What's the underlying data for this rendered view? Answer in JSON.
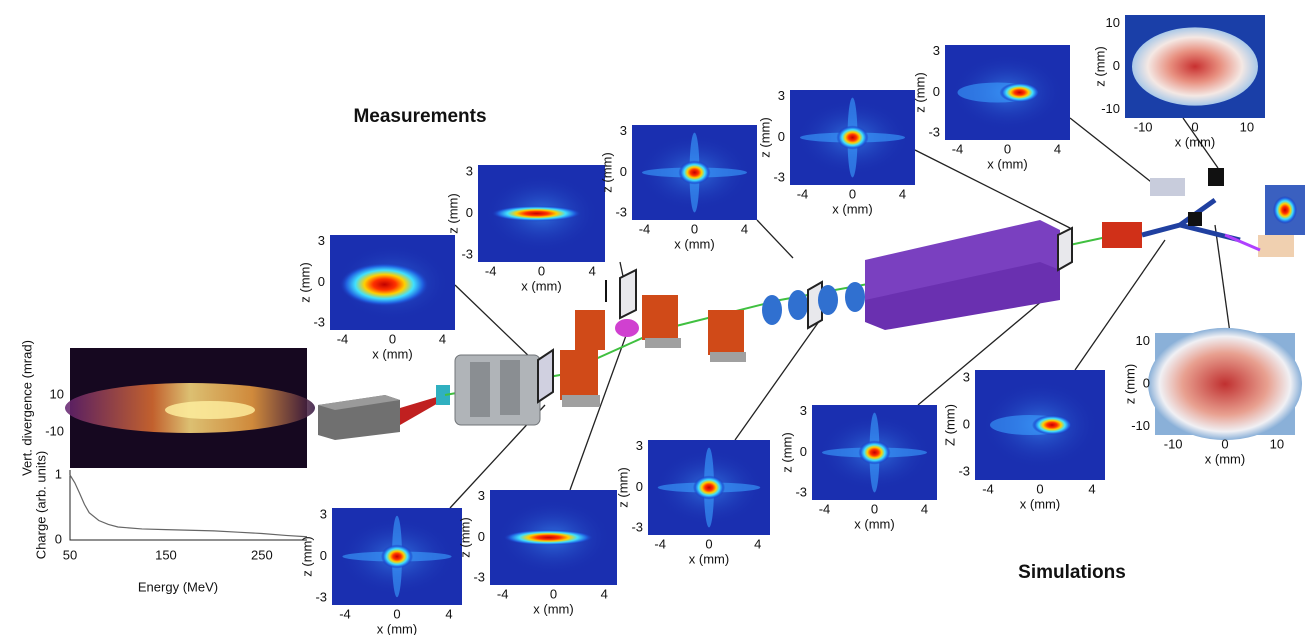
{
  "labels": {
    "measurements": "Measurements",
    "simulations": "Simulations"
  },
  "spectrum": {
    "divergence_label": "Vert. divergence (mrad)",
    "divergence_ticks": [
      10,
      -10
    ],
    "charge_label": "Charge (arb. units)",
    "charge_ticks": [
      1,
      0
    ],
    "energy_ticks": [
      50,
      150,
      250
    ],
    "energy_label": "Energy (MeV)",
    "charge_curve": {
      "energy": [
        50,
        55,
        60,
        65,
        70,
        80,
        90,
        100,
        125,
        150,
        175,
        200,
        225,
        250,
        275,
        297
      ],
      "charge": [
        1,
        0.88,
        0.72,
        0.55,
        0.42,
        0.3,
        0.24,
        0.2,
        0.17,
        0.16,
        0.15,
        0.14,
        0.12,
        0.1,
        0.07,
        0.05
      ]
    }
  },
  "panels": [
    {
      "x_label": "x (mm)",
      "y_label": "z (mm)",
      "xticks": [
        -4,
        0,
        4
      ],
      "yticks": [
        3,
        0,
        -3
      ]
    },
    {
      "x_label": "x (mm)",
      "y_label": "z (mm)",
      "xticks": [
        -4,
        0,
        4
      ],
      "yticks": [
        3,
        0,
        -3
      ]
    },
    {
      "x_label": "x (mm)",
      "y_label": "z (mm)",
      "xticks": [
        -4,
        0,
        4
      ],
      "yticks": [
        3,
        0,
        -3
      ]
    },
    {
      "x_label": "x (mm)",
      "y_label": "z (mm)",
      "xticks": [
        -4,
        0,
        4
      ],
      "yticks": [
        3,
        0,
        -3
      ]
    },
    {
      "x_label": "x (mm)",
      "y_label": "z (mm)",
      "xticks": [
        -4,
        0,
        4
      ],
      "yticks": [
        3,
        0,
        -3
      ]
    },
    {
      "x_label": "x (mm)",
      "y_label": "z (mm)",
      "xticks": [
        -10,
        0,
        10
      ],
      "yticks": [
        10,
        0,
        -10
      ]
    },
    {
      "x_label": "x (mm)",
      "y_label": "z (mm)",
      "xticks": [
        -4,
        0,
        4
      ],
      "yticks": [
        3,
        0,
        -3
      ]
    },
    {
      "x_label": "x (mm)",
      "y_label": "z (mm)",
      "xticks": [
        -4,
        0,
        4
      ],
      "yticks": [
        3,
        0,
        -3
      ]
    },
    {
      "x_label": "x (mm)",
      "y_label": "z (mm)",
      "xticks": [
        -4,
        0,
        4
      ],
      "yticks": [
        3,
        0,
        -3
      ]
    },
    {
      "x_label": "x (mm)",
      "y_label": "z (mm)",
      "xticks": [
        -4,
        0,
        4
      ],
      "yticks": [
        3,
        0,
        -3
      ]
    },
    {
      "x_label": "x (mm)",
      "y_label": "Z (mm)",
      "xticks": [
        -4,
        0,
        4
      ],
      "yticks": [
        3,
        0,
        -3
      ]
    },
    {
      "x_label": "x (mm)",
      "y_label": "z (mm)",
      "xticks": [
        -10,
        0,
        10
      ],
      "yticks": [
        10,
        0,
        -10
      ]
    }
  ]
}
